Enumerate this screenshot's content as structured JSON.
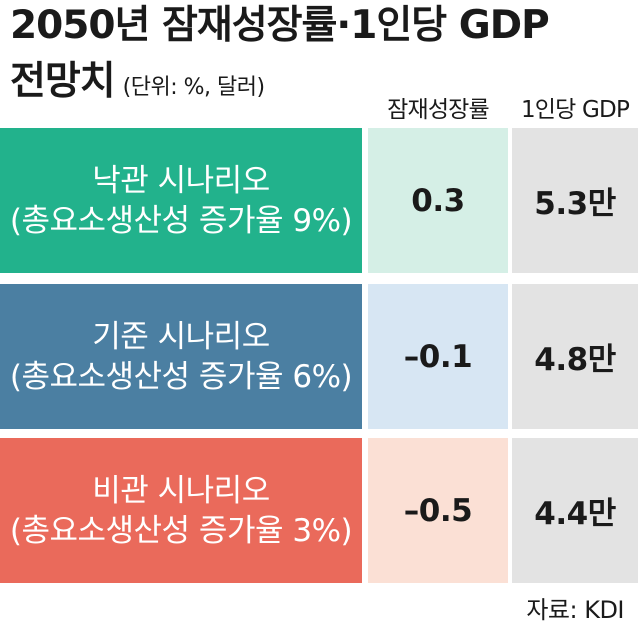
{
  "title": {
    "line1": "2050년 잠재성장률·1인당 GDP",
    "line2": "전망치",
    "unit": "(단위: %, 달러)"
  },
  "columns": {
    "growth": "잠재성장률",
    "gdp": "1인당 GDP"
  },
  "colors": {
    "optimistic": "#22b28c",
    "baseline": "#4b7fa2",
    "pessimistic": "#ea6a5b",
    "optimistic_light": "#d5efe6",
    "baseline_light": "#d7e6f3",
    "pessimistic_light": "#fbe0d5",
    "gdp_cell": "#e3e3e3"
  },
  "chart_data": {
    "type": "table",
    "title": "2050년 잠재성장률·1인당 GDP 전망치",
    "unit": "(단위: %, 달러)",
    "columns": [
      "잠재성장률",
      "1인당 GDP"
    ],
    "rows": [
      {
        "label": "낙관 시나리오",
        "sublabel": "(총요소생산성 증가율 9%)",
        "growth": "0.3",
        "gdp": "5.3만"
      },
      {
        "label": "기준 시나리오",
        "sublabel": "(총요소생산성 증가율 6%)",
        "growth": "–0.1",
        "gdp": "4.8만"
      },
      {
        "label": "비관 시나리오",
        "sublabel": "(총요소생산성 증가율 3%)",
        "growth": "–0.5",
        "gdp": "4.4만"
      }
    ]
  },
  "source": "자료: KDI"
}
